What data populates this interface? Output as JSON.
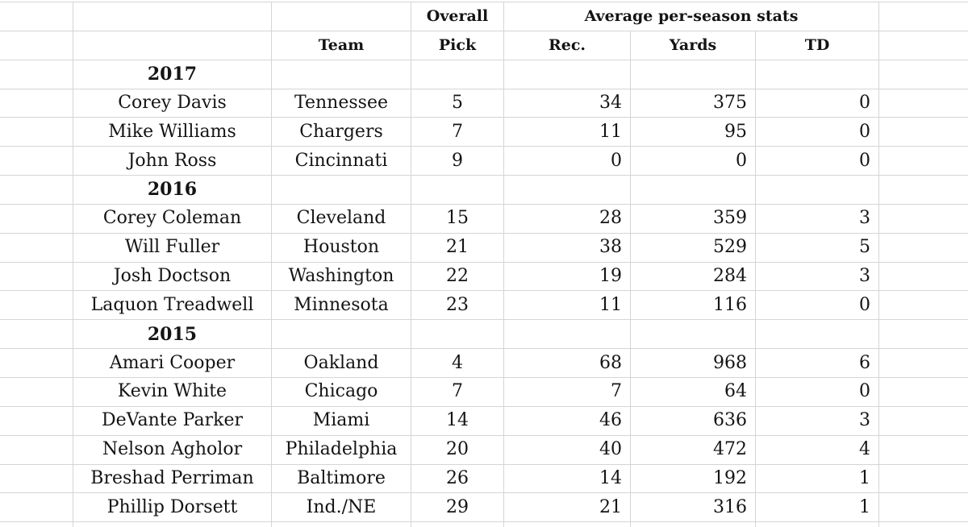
{
  "sheet": {
    "header": {
      "overall_label": "Overall",
      "stats_group_label": "Average per-season stats",
      "columns": {
        "team": "Team",
        "pick": "Pick",
        "rec": "Rec.",
        "yards": "Yards",
        "td": "TD"
      }
    },
    "sections": [
      {
        "year": "2017",
        "players": [
          {
            "name": "Corey Davis",
            "team": "Tennessee",
            "pick": "5",
            "rec": "34",
            "yards": "375",
            "td": "0"
          },
          {
            "name": "Mike Williams",
            "team": "Chargers",
            "pick": "7",
            "rec": "11",
            "yards": "95",
            "td": "0"
          },
          {
            "name": "John Ross",
            "team": "Cincinnati",
            "pick": "9",
            "rec": "0",
            "yards": "0",
            "td": "0"
          }
        ]
      },
      {
        "year": "2016",
        "players": [
          {
            "name": "Corey Coleman",
            "team": "Cleveland",
            "pick": "15",
            "rec": "28",
            "yards": "359",
            "td": "3"
          },
          {
            "name": "Will Fuller",
            "team": "Houston",
            "pick": "21",
            "rec": "38",
            "yards": "529",
            "td": "5"
          },
          {
            "name": "Josh Doctson",
            "team": "Washington",
            "pick": "22",
            "rec": "19",
            "yards": "284",
            "td": "3"
          },
          {
            "name": "Laquon Treadwell",
            "team": "Minnesota",
            "pick": "23",
            "rec": "11",
            "yards": "116",
            "td": "0"
          }
        ]
      },
      {
        "year": "2015",
        "players": [
          {
            "name": "Amari Cooper",
            "team": "Oakland",
            "pick": "4",
            "rec": "68",
            "yards": "968",
            "td": "6"
          },
          {
            "name": "Kevin White",
            "team": "Chicago",
            "pick": "7",
            "rec": "7",
            "yards": "64",
            "td": "0"
          },
          {
            "name": "DeVante Parker",
            "team": "Miami",
            "pick": "14",
            "rec": "46",
            "yards": "636",
            "td": "3"
          },
          {
            "name": "Nelson Agholor",
            "team": "Philadelphia",
            "pick": "20",
            "rec": "40",
            "yards": "472",
            "td": "4"
          },
          {
            "name": "Breshad Perriman",
            "team": "Baltimore",
            "pick": "26",
            "rec": "14",
            "yards": "192",
            "td": "1"
          },
          {
            "name": "Phillip Dorsett",
            "team": "Ind./NE",
            "pick": "29",
            "rec": "21",
            "yards": "316",
            "td": "1"
          }
        ]
      }
    ],
    "colors": {
      "gridline": "#d5d5d5",
      "text": "#141414",
      "background": "#ffffff"
    }
  }
}
